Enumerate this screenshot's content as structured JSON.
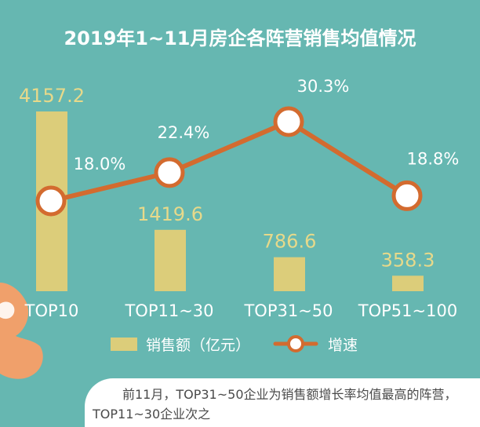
{
  "colors": {
    "background": "#66b7b1",
    "bar": "#dccd7a",
    "bar_label": "#e7d98a",
    "line": "#d36b2f",
    "point_fill": "#ffffff",
    "text_light": "#ffffff",
    "note_text": "#4a4a4a",
    "decor_orange": "#f0a06b"
  },
  "chart_data": {
    "type": "bar",
    "title": "2019年1~11月房企各阵营销售均值情况",
    "categories": [
      "TOP10",
      "TOP11~30",
      "TOP31~50",
      "TOP51~100"
    ],
    "series": [
      {
        "name": "销售额（亿元）",
        "type": "bar",
        "values": [
          4157.2,
          1419.6,
          786.6,
          358.3
        ],
        "labels": [
          "4157.2",
          "1419.6",
          "786.6",
          "358.3"
        ]
      },
      {
        "name": "增速",
        "type": "line",
        "values": [
          18.0,
          22.4,
          30.3,
          18.8
        ],
        "labels": [
          "18.0%",
          "22.4%",
          "30.3%",
          "18.8%"
        ]
      }
    ],
    "legend_position": "bottom",
    "grid": false
  },
  "note": "前11月，TOP31~50企业为销售额增长率均值最高的阵营，TOP11~30企业次之"
}
